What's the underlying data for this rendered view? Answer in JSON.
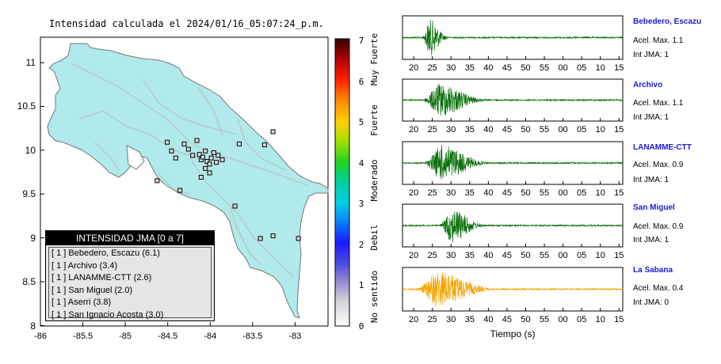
{
  "map": {
    "title": "Intensidad calculada el 2024/01/16_05:07:24_p.m.",
    "x_ticks": [
      "-86",
      "-85.5",
      "-85",
      "-84.5",
      "-84",
      "-83.5",
      "-83"
    ],
    "y_ticks": [
      "11",
      "10.5",
      "10",
      "9.5",
      "9",
      "8.5",
      "8"
    ],
    "colorbar": {
      "ticks": [
        "0",
        "1",
        "2",
        "3",
        "4",
        "5",
        "6",
        "7"
      ],
      "labels": [
        "No sentido",
        "Debil",
        "Moderado",
        "Fuerte",
        "Muy Fuerte"
      ]
    },
    "legend": {
      "title": "INTENSIDAD JMA [0 a 7]",
      "items": [
        "[ 1 ] Bebedero, Escazu (6.1)",
        "[ 1 ] Archivo (3.4)",
        "[ 1 ] LANAMME-CTT (2.6)",
        "[ 1 ] San Miguel (2.0)",
        "[ 1 ] Aserri (3.8)",
        "[ 1 ] San Ignacio Acosta (3.0)"
      ]
    }
  },
  "waveforms": {
    "x_label": "Tiempo (s)",
    "x_ticks": [
      "20",
      "25",
      "30",
      "35",
      "40",
      "45",
      "50",
      "55",
      "00",
      "05",
      "10",
      "15"
    ],
    "colors": {
      "green": "#0a6e0a",
      "orange": "#f5a400"
    },
    "stations": [
      {
        "name": "Bebedero, Escazu",
        "acel": "Acel. Max. 1.1",
        "jma": "Int JMA: 1",
        "color": "#0a6e0a",
        "peak_time": 24.3,
        "amplitude": 0.95,
        "spread": 2.0
      },
      {
        "name": "Archivo",
        "acel": "Acel. Max. 1.1",
        "jma": "Int JMA: 1",
        "color": "#0a6e0a",
        "peak_time": 27.0,
        "amplitude": 0.9,
        "spread": 5.0
      },
      {
        "name": "LANAMME-CTT",
        "acel": "Acel. Max. 0.9",
        "jma": "Int JMA: 1",
        "color": "#0a6e0a",
        "peak_time": 27.5,
        "amplitude": 0.95,
        "spread": 5.0
      },
      {
        "name": "San Miguel",
        "acel": "Acel. Max. 0.9",
        "jma": "Int JMA: 1",
        "color": "#0a6e0a",
        "peak_time": 30.2,
        "amplitude": 0.9,
        "spread": 3.5
      },
      {
        "name": "La Sabana",
        "acel": "Acel. Max. 0.4",
        "jma": "Int JMA: 0",
        "color": "#f5a400",
        "peak_time": 26.5,
        "amplitude": 0.95,
        "spread": 6.0
      }
    ]
  },
  "chart_data": [
    {
      "type": "scatter",
      "title": "Intensidad calculada el 2024/01/16_05:07:24_p.m.",
      "xlim": [
        -86,
        -82.6
      ],
      "ylim": [
        8,
        11.3
      ],
      "stations": [
        {
          "x": -84.5,
          "y": 10.1
        },
        {
          "x": -84.45,
          "y": 10.0
        },
        {
          "x": -84.4,
          "y": 9.92
        },
        {
          "x": -84.3,
          "y": 10.08
        },
        {
          "x": -84.25,
          "y": 10.02
        },
        {
          "x": -84.2,
          "y": 9.95
        },
        {
          "x": -84.15,
          "y": 10.12
        },
        {
          "x": -84.1,
          "y": 9.9
        },
        {
          "x": -84.12,
          "y": 9.96
        },
        {
          "x": -84.08,
          "y": 9.93
        },
        {
          "x": -84.05,
          "y": 10.0
        },
        {
          "x": -84.03,
          "y": 9.88
        },
        {
          "x": -84.0,
          "y": 9.85
        },
        {
          "x": -83.98,
          "y": 9.92
        },
        {
          "x": -83.95,
          "y": 9.98
        },
        {
          "x": -83.92,
          "y": 9.87
        },
        {
          "x": -83.9,
          "y": 9.95
        },
        {
          "x": -83.85,
          "y": 9.9
        },
        {
          "x": -84.05,
          "y": 9.8
        },
        {
          "x": -84.0,
          "y": 9.75
        },
        {
          "x": -84.1,
          "y": 9.7
        },
        {
          "x": -83.65,
          "y": 10.08
        },
        {
          "x": -83.35,
          "y": 10.07
        },
        {
          "x": -84.62,
          "y": 9.66
        },
        {
          "x": -84.35,
          "y": 9.55
        },
        {
          "x": -83.7,
          "y": 9.37
        },
        {
          "x": -83.25,
          "y": 9.03
        },
        {
          "x": -83.4,
          "y": 9.0
        },
        {
          "x": -82.95,
          "y": 9.0
        },
        {
          "x": -83.25,
          "y": 10.22
        }
      ]
    },
    {
      "type": "line",
      "xlabel": "Tiempo (s)",
      "series": [
        {
          "name": "Bebedero, Escazu"
        },
        {
          "name": "Archivo"
        },
        {
          "name": "LANAMME-CTT"
        },
        {
          "name": "San Miguel"
        },
        {
          "name": "La Sabana"
        }
      ]
    }
  ]
}
